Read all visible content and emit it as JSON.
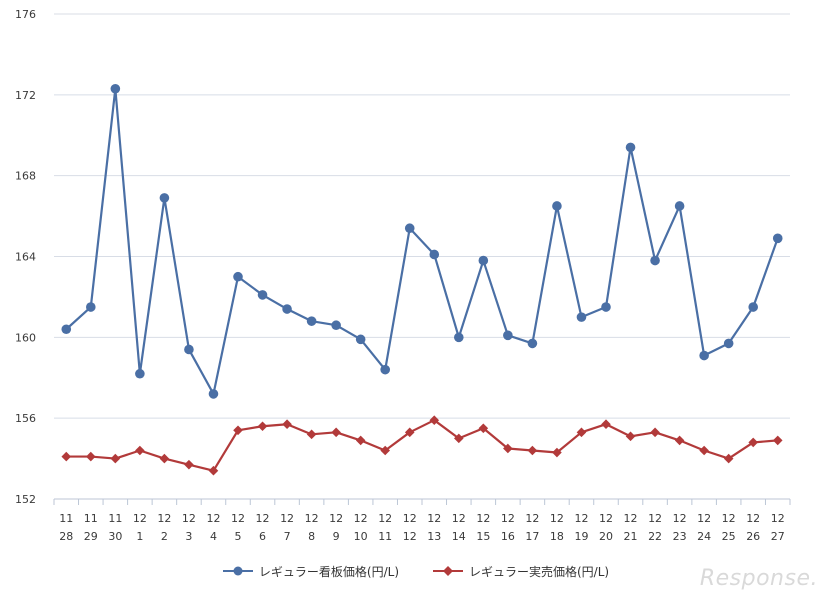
{
  "watermark": "Response.",
  "chart_data": {
    "type": "line",
    "title": "",
    "xlabel": "",
    "ylabel": "",
    "ylim": [
      152,
      176
    ],
    "yticks": [
      152,
      156,
      160,
      164,
      168,
      172,
      176
    ],
    "grid": true,
    "legend_position": "bottom",
    "categories": [
      [
        "11",
        "28"
      ],
      [
        "11",
        "29"
      ],
      [
        "11",
        "30"
      ],
      [
        "12",
        "1"
      ],
      [
        "12",
        "2"
      ],
      [
        "12",
        "3"
      ],
      [
        "12",
        "4"
      ],
      [
        "12",
        "5"
      ],
      [
        "12",
        "6"
      ],
      [
        "12",
        "7"
      ],
      [
        "12",
        "8"
      ],
      [
        "12",
        "9"
      ],
      [
        "12",
        "10"
      ],
      [
        "12",
        "11"
      ],
      [
        "12",
        "12"
      ],
      [
        "12",
        "13"
      ],
      [
        "12",
        "14"
      ],
      [
        "12",
        "15"
      ],
      [
        "12",
        "16"
      ],
      [
        "12",
        "17"
      ],
      [
        "12",
        "18"
      ],
      [
        "12",
        "19"
      ],
      [
        "12",
        "20"
      ],
      [
        "12",
        "21"
      ],
      [
        "12",
        "22"
      ],
      [
        "12",
        "23"
      ],
      [
        "12",
        "24"
      ],
      [
        "12",
        "25"
      ],
      [
        "12",
        "26"
      ],
      [
        "12",
        "27"
      ]
    ],
    "series": [
      {
        "name": "レギュラー看板価格(円/L)",
        "color": "#4a6fa5",
        "marker": "circle",
        "values": [
          160.4,
          161.5,
          172.3,
          158.2,
          166.9,
          159.4,
          157.2,
          163.0,
          162.1,
          161.4,
          160.8,
          160.6,
          159.9,
          158.4,
          165.4,
          164.1,
          160.0,
          163.8,
          160.1,
          159.7,
          166.5,
          161.0,
          161.5,
          169.4,
          163.8,
          166.5,
          159.1,
          159.7,
          161.5,
          164.9
        ]
      },
      {
        "name": "レギュラー実売価格(円/L)",
        "color": "#b23a3a",
        "marker": "diamond",
        "values": [
          154.1,
          154.1,
          154.0,
          154.4,
          154.0,
          153.7,
          153.4,
          155.4,
          155.6,
          155.7,
          155.2,
          155.3,
          154.9,
          154.4,
          155.3,
          155.9,
          155.0,
          155.5,
          154.5,
          154.4,
          154.3,
          155.3,
          155.7,
          155.1,
          155.3,
          154.9,
          154.4,
          154.0,
          154.8,
          154.9
        ]
      }
    ]
  }
}
